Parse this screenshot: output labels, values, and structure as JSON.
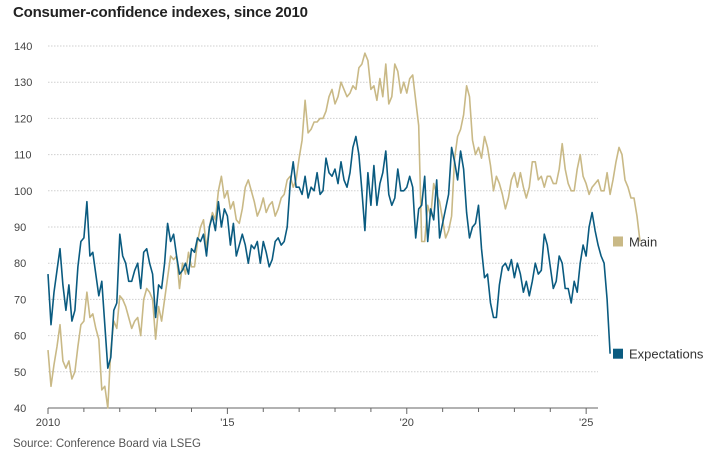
{
  "title": "Consumer-confidence indexes, since 2010",
  "source": "Source: Conference Board via LSEG",
  "colors": {
    "main": "#c9b986",
    "expectations": "#0a5b80",
    "grid": "#cfcfcf",
    "axis": "#666666"
  },
  "chart_data": {
    "type": "line",
    "title": "Consumer-confidence indexes, since 2010",
    "xlabel": "",
    "ylabel": "",
    "xlim": [
      2010.0,
      2025.33
    ],
    "ylim": [
      40,
      140
    ],
    "yticks": [
      40,
      50,
      60,
      70,
      80,
      90,
      100,
      110,
      120,
      130,
      140
    ],
    "xtick_labels": [
      {
        "x": 2010,
        "label": "2010"
      },
      {
        "x": 2015,
        "label": "'15"
      },
      {
        "x": 2020,
        "label": "'20"
      },
      {
        "x": 2025,
        "label": "'25"
      }
    ],
    "xtick_minor": [
      2011,
      2012,
      2013,
      2014,
      2016,
      2017,
      2018,
      2019,
      2021,
      2022,
      2023,
      2024
    ],
    "start": 2010.0,
    "step": 0.08333,
    "series": [
      {
        "name": "Main",
        "values": [
          56,
          46,
          52,
          57,
          63,
          53,
          51,
          53,
          48,
          50,
          57,
          63,
          64,
          72,
          65,
          66,
          62,
          59,
          45,
          46,
          40,
          56,
          64,
          62,
          71,
          70,
          68,
          65,
          62,
          64,
          65,
          60,
          70,
          73,
          72,
          70,
          59,
          68,
          64,
          70,
          76,
          82,
          81,
          82,
          73,
          80,
          77,
          83,
          79,
          79,
          86,
          90,
          92,
          84,
          90,
          94,
          92,
          100,
          104,
          98,
          100,
          95,
          97,
          92,
          91,
          95,
          101,
          103,
          100,
          97,
          93,
          95,
          98,
          94,
          96,
          97,
          93,
          95,
          98,
          99,
          103,
          104,
          101,
          103,
          109,
          114,
          125,
          116,
          117,
          119,
          119,
          120,
          120,
          122,
          126,
          128,
          124,
          126,
          130,
          128,
          126,
          127,
          129,
          128,
          134,
          135,
          138,
          136,
          128,
          129,
          125,
          131,
          126,
          135,
          124,
          126,
          135,
          133,
          127,
          130,
          127,
          131,
          132,
          125,
          118,
          86,
          86,
          96,
          93,
          102,
          99,
          97,
          92,
          87,
          89,
          93,
          109,
          115,
          117,
          121,
          129,
          126,
          114,
          110,
          112,
          109,
          115,
          112,
          107,
          100,
          104,
          102,
          99,
          95,
          98,
          103,
          105,
          101,
          105,
          101,
          98,
          101,
          108,
          108,
          103,
          104,
          101,
          104,
          104,
          102,
          102,
          106,
          113,
          106,
          102,
          100,
          100,
          106,
          110,
          104,
          102,
          99,
          101,
          102,
          103,
          100,
          100,
          105,
          99,
          103,
          108,
          112,
          110,
          103,
          101,
          98,
          98,
          93,
          86
        ]
      },
      {
        "name": "Expectations",
        "values": [
          77,
          63,
          72,
          78,
          84,
          74,
          67,
          74,
          64,
          67,
          79,
          86,
          87,
          97,
          82,
          83,
          77,
          71,
          75,
          63,
          51,
          54,
          67,
          69,
          88,
          82,
          80,
          75,
          75,
          78,
          80,
          73,
          83,
          84,
          80,
          77,
          65,
          74,
          73,
          80,
          91,
          86,
          88,
          82,
          77,
          78,
          80,
          77,
          84,
          83,
          87,
          86,
          88,
          82,
          90,
          93,
          89,
          97,
          90,
          95,
          93,
          85,
          91,
          82,
          85,
          88,
          85,
          80,
          85,
          84,
          86,
          80,
          86,
          83,
          79,
          81,
          86,
          87,
          85,
          86,
          90,
          102,
          108,
          101,
          101,
          99,
          104,
          98,
          101,
          100,
          105,
          99,
          100,
          109,
          105,
          104,
          106,
          102,
          108,
          103,
          101,
          105,
          112,
          115,
          110,
          100,
          89,
          105,
          96,
          107,
          96,
          102,
          105,
          111,
          99,
          96,
          98,
          106,
          100,
          100,
          101,
          104,
          101,
          87,
          95,
          96,
          104,
          86,
          95,
          92,
          103,
          87,
          91,
          95,
          99,
          112,
          108,
          103,
          111,
          106,
          94,
          87,
          90,
          91,
          96,
          84,
          76,
          77,
          69,
          65,
          65,
          74,
          79,
          80,
          78,
          81,
          76,
          80,
          77,
          72,
          75,
          71,
          75,
          80,
          77,
          78,
          88,
          85,
          79,
          73,
          75,
          82,
          80,
          73,
          73,
          69,
          75,
          72,
          80,
          85,
          82,
          90,
          94,
          89,
          85,
          82,
          80,
          70,
          55
        ]
      }
    ],
    "legend": [
      {
        "name": "Main",
        "position": "right"
      },
      {
        "name": "Expectations",
        "position": "right"
      }
    ]
  }
}
